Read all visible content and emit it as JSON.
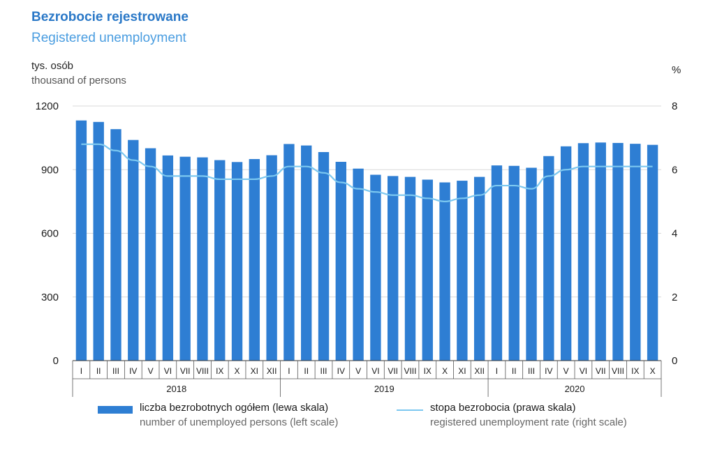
{
  "title": "Bezrobocie rejestrowane",
  "subtitle": "Registered unemployment",
  "left_unit": {
    "pl": "tys. osób",
    "en": "thousand of persons"
  },
  "right_unit": "%",
  "legend": {
    "bars": {
      "pl": "liczba bezrobotnych ogółem (lewa skala)",
      "en": "number of unemployed persons (left scale)"
    },
    "line": {
      "pl": "stopa bezrobocia (prawa skala)",
      "en": "registered unemployment rate (right scale)"
    }
  },
  "colors": {
    "bar": "#2e7ed3",
    "line": "#7cc8f0",
    "title": "#2a78c7",
    "subtitle": "#4a9de0"
  },
  "chart_data": {
    "type": "bar",
    "categories": [
      "I",
      "II",
      "III",
      "IV",
      "V",
      "VI",
      "VII",
      "VIII",
      "IX",
      "X",
      "XI",
      "XII",
      "I",
      "II",
      "III",
      "IV",
      "V",
      "VI",
      "VII",
      "VIII",
      "IX",
      "X",
      "XI",
      "XII",
      "I",
      "II",
      "III",
      "IV",
      "V",
      "VI",
      "VII",
      "VIII",
      "IX",
      "X"
    ],
    "groups": [
      {
        "label": "2018",
        "count": 12
      },
      {
        "label": "2019",
        "count": 12
      },
      {
        "label": "2020",
        "count": 10
      }
    ],
    "series": [
      {
        "name": "liczba bezrobotnych ogółem (lewa skala)",
        "type": "bar",
        "axis": "left",
        "values": [
          1132,
          1125,
          1091,
          1040,
          1001,
          967,
          961,
          958,
          945,
          936,
          950,
          968,
          1021,
          1014,
          983,
          937,
          905,
          876,
          870,
          866,
          853,
          840,
          848,
          866,
          920,
          918,
          909,
          964,
          1010,
          1025,
          1028,
          1026,
          1022,
          1017
        ]
      },
      {
        "name": "stopa bezrobocia (prawa skala)",
        "type": "line",
        "axis": "right",
        "values": [
          6.8,
          6.8,
          6.6,
          6.3,
          6.1,
          5.8,
          5.8,
          5.8,
          5.7,
          5.7,
          5.7,
          5.8,
          6.1,
          6.1,
          5.9,
          5.6,
          5.4,
          5.3,
          5.2,
          5.2,
          5.1,
          5.0,
          5.1,
          5.2,
          5.5,
          5.5,
          5.4,
          5.8,
          6.0,
          6.1,
          6.1,
          6.1,
          6.1,
          6.1
        ]
      }
    ],
    "left_axis": {
      "ticks": [
        0,
        300,
        600,
        900,
        1200
      ],
      "ylim": [
        0,
        1200
      ]
    },
    "right_axis": {
      "ticks": [
        0,
        2,
        4,
        6,
        8
      ],
      "ylim": [
        0,
        8
      ]
    },
    "grid": true,
    "legend_position": "bottom"
  }
}
